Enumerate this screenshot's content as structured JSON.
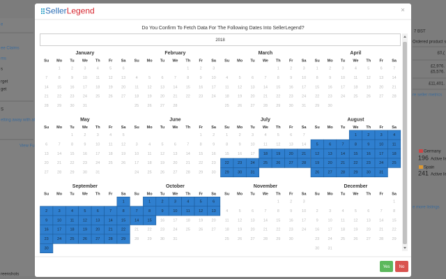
{
  "background": {
    "left": [
      "e",
      "ee Claims",
      "ms",
      "s",
      "rget",
      "get",
      "S",
      "etting away with abi",
      "View Fu",
      "reenshots"
    ],
    "right": [
      "7 BST",
      "Ordered product sal",
      "£0,(",
      "£2,976.",
      "£5,576.",
      "£11,401.",
      "re seller metrics",
      "Germany",
      "196",
      "Active listi",
      "Spain",
      "241",
      "Active listi",
      "e more listings"
    ]
  },
  "modal": {
    "logo": {
      "part1": "Seller",
      "part2": "Legend"
    },
    "close": "×",
    "question": "Do You Confirm To Fetch Data For The Following Dates Into SellerLegend?",
    "year": 2018,
    "weekdays": [
      "Su",
      "Mo",
      "Tu",
      "We",
      "Th",
      "Fr",
      "Sa"
    ],
    "months": [
      {
        "name": "January",
        "days": [
          1,
          2,
          3,
          4,
          5,
          6,
          7,
          8,
          9,
          10,
          11,
          12,
          13,
          14,
          15,
          16,
          17,
          18,
          19,
          20,
          21,
          22,
          23,
          24,
          25,
          26,
          27,
          28,
          29,
          30,
          31
        ]
      },
      {
        "name": "February",
        "days": [
          1,
          2,
          3,
          4,
          5,
          6,
          7,
          8,
          9,
          10,
          11,
          12,
          13,
          14,
          15,
          16,
          17,
          18,
          19,
          20,
          21,
          22,
          23,
          24,
          25,
          26,
          27,
          28
        ]
      },
      {
        "name": "March",
        "days": [
          1,
          2,
          3,
          4,
          5,
          6,
          7,
          8,
          9,
          10,
          11,
          12,
          13,
          14,
          15,
          16,
          17,
          18,
          19,
          20,
          21,
          22,
          23,
          24,
          25,
          26,
          27,
          28,
          29,
          30,
          31
        ]
      },
      {
        "name": "April",
        "days": [
          1,
          2,
          3,
          4,
          5,
          6,
          7,
          8,
          9,
          10,
          11,
          12,
          13,
          14,
          15,
          16,
          17,
          18,
          19,
          20,
          21,
          22,
          23,
          24,
          25,
          26,
          27,
          28,
          29,
          30
        ]
      },
      {
        "name": "May",
        "days": [
          1,
          2,
          3,
          4,
          5,
          6,
          7,
          8,
          9,
          10,
          11,
          12,
          13,
          14,
          15,
          16,
          17,
          18,
          19,
          20,
          21,
          22,
          23,
          24,
          25,
          26,
          27,
          28,
          29,
          30,
          31
        ]
      },
      {
        "name": "June",
        "days": [
          1,
          2,
          3,
          4,
          5,
          6,
          7,
          8,
          9,
          10,
          11,
          12,
          13,
          14,
          15,
          16,
          17,
          18,
          19,
          20,
          21,
          22,
          23,
          24,
          25,
          26,
          27,
          28,
          29,
          30
        ]
      },
      {
        "name": "July",
        "days": [
          1,
          2,
          3,
          4,
          5,
          6,
          7,
          8,
          9,
          10,
          11,
          12,
          13,
          14,
          15,
          16,
          17,
          18,
          19,
          20,
          21,
          22,
          23,
          24,
          25,
          26,
          27,
          28,
          29,
          30,
          31
        ],
        "selected": [
          18,
          31
        ]
      },
      {
        "name": "August",
        "days": [
          1,
          2,
          3,
          4,
          5,
          6,
          7,
          8,
          9,
          10,
          11,
          12,
          13,
          14,
          15,
          16,
          17,
          18,
          19,
          20,
          21,
          22,
          23,
          24,
          25,
          26,
          27,
          28,
          29,
          30,
          31
        ],
        "selected": [
          1,
          31
        ]
      },
      {
        "name": "September",
        "days": [
          1,
          2,
          3,
          4,
          5,
          6,
          7,
          8,
          9,
          10,
          11,
          12,
          13,
          14,
          15,
          16,
          17,
          18,
          19,
          20,
          21,
          22,
          23,
          24,
          25,
          26,
          27,
          28,
          29,
          30
        ],
        "selected": [
          1,
          30
        ]
      },
      {
        "name": "October",
        "days": [
          1,
          2,
          3,
          4,
          5,
          6,
          7,
          8,
          9,
          10,
          11,
          12,
          13,
          14,
          15,
          16,
          17,
          18,
          19,
          20,
          21,
          22,
          23,
          24,
          25,
          26,
          27,
          28,
          29,
          30,
          31
        ],
        "selected": [
          1,
          15
        ]
      },
      {
        "name": "November",
        "days": [
          1,
          2,
          3,
          4,
          5,
          6,
          7,
          8,
          9,
          10,
          11,
          12,
          13,
          14,
          15,
          16,
          17,
          18,
          19,
          20,
          21,
          22,
          23,
          24,
          25,
          26,
          27,
          28,
          29,
          30
        ]
      },
      {
        "name": "December",
        "days": [
          1,
          2,
          3,
          4,
          5,
          6,
          7,
          8,
          9,
          10,
          11,
          12,
          13,
          14,
          15,
          16,
          17,
          18,
          19,
          20,
          21,
          22,
          23,
          24,
          25,
          26,
          27,
          28,
          29,
          30,
          31
        ]
      }
    ],
    "buttons": {
      "yes": "Yes",
      "no": "No"
    }
  }
}
